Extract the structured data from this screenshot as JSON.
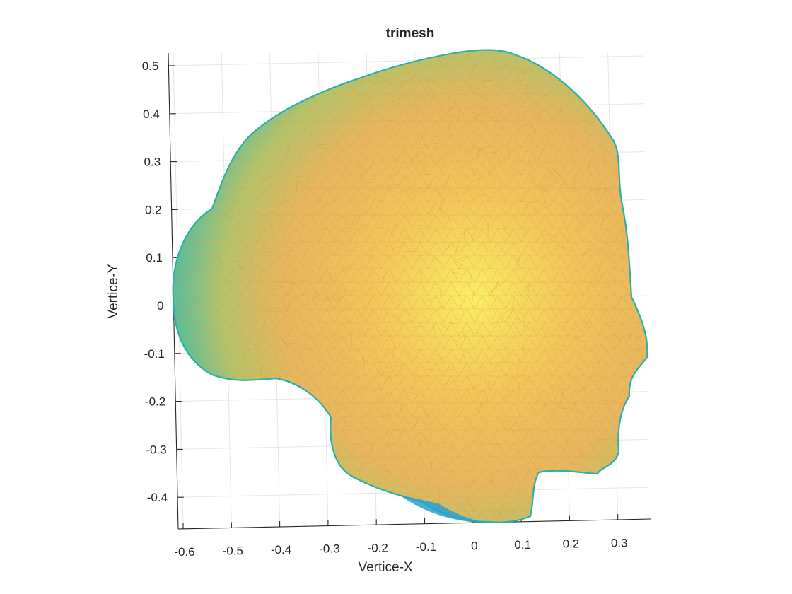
{
  "chart_data": {
    "type": "3d-mesh",
    "title": "trimesh",
    "xlabel": "Vertice-X",
    "ylabel": "Vertice-Y",
    "x_ticks": [
      "-0.6",
      "-0.5",
      "-0.4",
      "-0.3",
      "-0.2",
      "-0.1",
      "0",
      "0.1",
      "0.2",
      "0.3"
    ],
    "y_ticks": [
      "0.5",
      "0.4",
      "0.3",
      "0.2",
      "0.1",
      "0",
      "-0.1",
      "-0.2",
      "-0.3",
      "-0.4"
    ],
    "xlim": [
      -0.62,
      0.37
    ],
    "ylim": [
      -0.46,
      0.53
    ],
    "grid": true,
    "colormap": [
      "#1a8fd4",
      "#20b2aa",
      "#8cc05a",
      "#eead4a",
      "#f8e63a"
    ],
    "mesh_edge_color_low": "#20b2aa",
    "mesh_edge_color_high": "#f7ea2e"
  }
}
